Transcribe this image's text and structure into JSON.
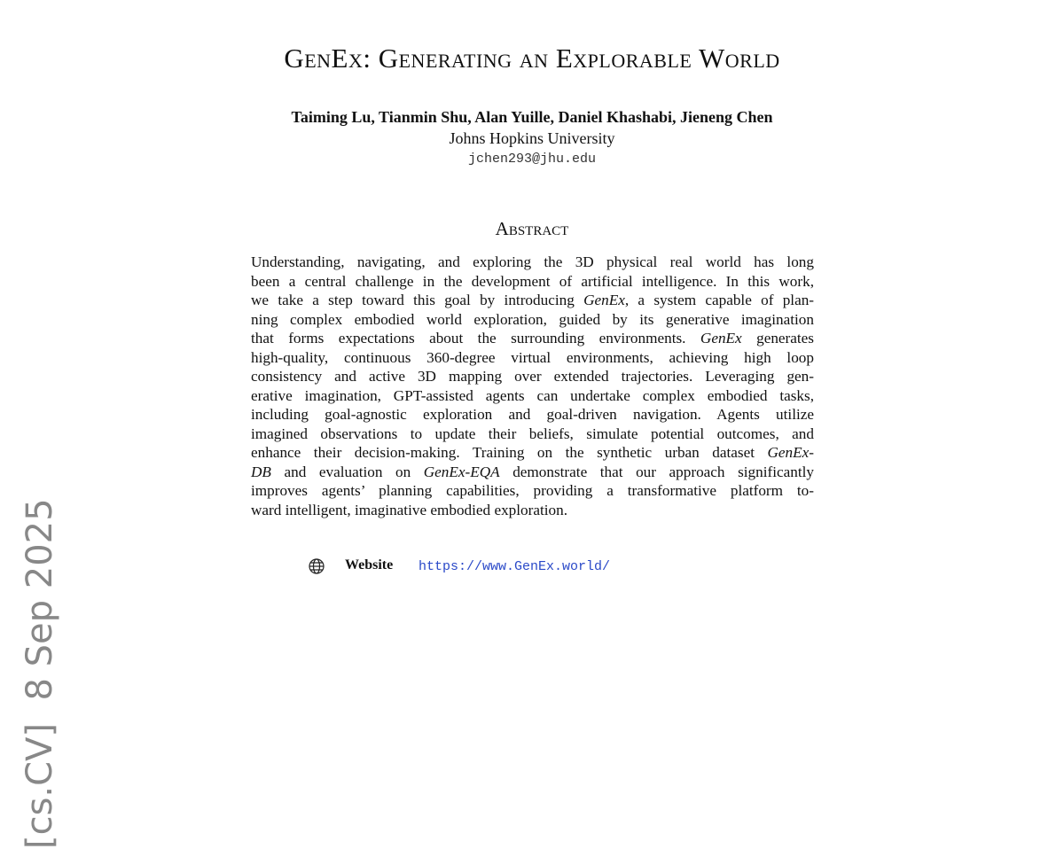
{
  "header": {
    "title": "GenEx: Generating an Explorable World",
    "authors": "Taiming Lu, Tianmin Shu, Alan Yuille, Daniel Khashabi, Jieneng Chen",
    "affiliation": "Johns Hopkins University",
    "email": "jchen293@jhu.edu"
  },
  "sidebar": {
    "stamp": "[cs.CV]  8 Sep 2025"
  },
  "abstract": {
    "heading": "Abstract",
    "lines": [
      [
        "Understanding, navigating, and exploring the 3D physical real world has long"
      ],
      [
        "been a central challenge in the development of artificial intelligence. In this work,"
      ],
      [
        "we take a step toward this goal by introducing ",
        {
          "text": "GenEx",
          "italic": true
        },
        ", a system capable of plan-"
      ],
      [
        "ning complex embodied world exploration, guided by its generative imagination"
      ],
      [
        "that forms expectations about the surrounding environments. ",
        {
          "text": "GenEx",
          "italic": true
        },
        " generates"
      ],
      [
        "high-quality, continuous 360-degree virtual environments, achieving high loop"
      ],
      [
        "consistency and active 3D mapping over extended trajectories. Leveraging gen-"
      ],
      [
        "erative imagination, GPT-assisted agents can undertake complex embodied tasks,"
      ],
      [
        "including goal-agnostic exploration and goal-driven navigation. Agents utilize"
      ],
      [
        "imagined observations to update their beliefs, simulate potential outcomes, and"
      ],
      [
        "enhance their decision-making. Training on the synthetic urban dataset ",
        {
          "text": "GenEx-",
          "italic": true
        }
      ],
      [
        {
          "text": "DB",
          "italic": true
        },
        " and evaluation on ",
        {
          "text": "GenEx-EQA",
          "italic": true
        },
        " demonstrate that our approach significantly"
      ],
      [
        "improves agents’ planning capabilities, providing a transformative platform to-"
      ],
      [
        "ward intelligent, imaginative embodied exploration."
      ]
    ]
  },
  "links": {
    "label": "Website",
    "url": "https://www.GenEx.world/"
  }
}
